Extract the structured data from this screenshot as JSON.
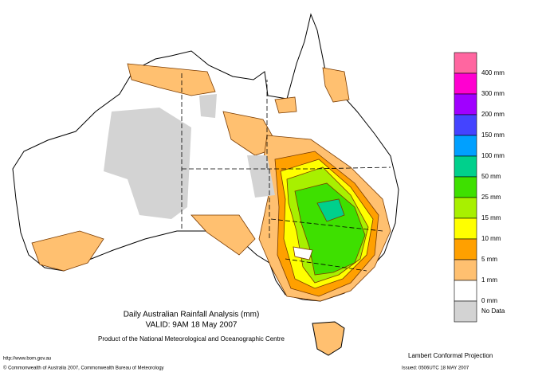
{
  "map": {
    "title": "Daily Australian Rainfall Analysis (mm)",
    "valid": "VALID: 9AM 18 May 2007",
    "product": "Product of the National Meteorological and Oceanographic Centre",
    "url": "http://www.bom.gov.au",
    "copyright": "© Commonwealth of Australia 2007, Commonwealth Bureau of Meteorology",
    "projection": "Lambert Conformal Projection",
    "issued": "Issued: 0506UTC 18 MAY 2007",
    "legend": {
      "colors": [
        "#ff66a0",
        "#ff00d0",
        "#a000ff",
        "#4444ff",
        "#00a0ff",
        "#00d08c",
        "#3ee000",
        "#a8f000",
        "#ffff00",
        "#ffa000",
        "#ffc070",
        "#ffffff",
        "#d3d3d3"
      ],
      "labels": [
        "400 mm",
        "300 mm",
        "200 mm",
        "150 mm",
        "100 mm",
        "50 mm",
        "25 mm",
        "15 mm",
        "10 mm",
        "5 mm",
        "1 mm",
        "0 mm",
        "No Data"
      ]
    }
  }
}
